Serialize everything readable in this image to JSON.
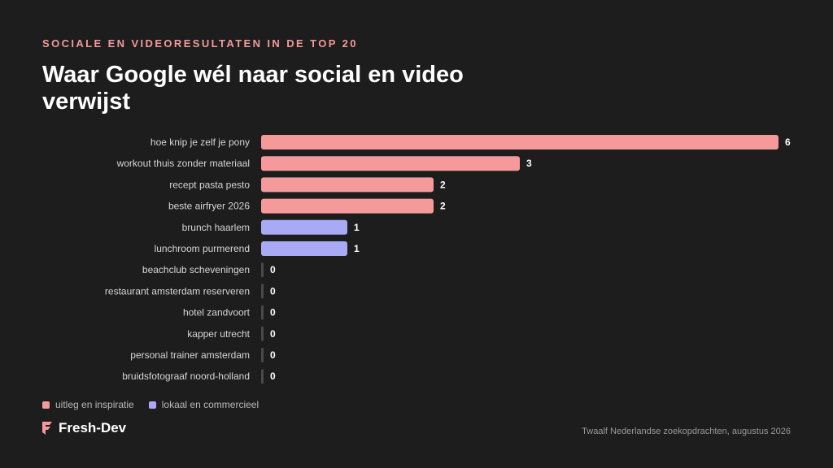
{
  "kicker": "SOCIALE EN VIDEORESULTATEN IN DE TOP 20",
  "title": "Waar Google wél naar social en video verwijst",
  "colors": {
    "background": "#1d1d1d",
    "uitleg": "#f49a9a",
    "lokaal": "#a9aaf5",
    "zero": "#4a4a4a"
  },
  "legend": {
    "items": [
      {
        "label": "uitleg en inspiratie",
        "group": "uitleg"
      },
      {
        "label": "lokaal en commercieel",
        "group": "lokaal"
      }
    ]
  },
  "chart_data": {
    "type": "bar",
    "orientation": "horizontal",
    "categories": [
      "hoe knip je zelf je pony",
      "workout thuis zonder materiaal",
      "recept pasta pesto",
      "beste airfryer 2026",
      "brunch haarlem",
      "lunchroom purmerend",
      "beachclub scheveningen",
      "restaurant amsterdam reserveren",
      "hotel zandvoort",
      "kapper utrecht",
      "personal trainer amsterdam",
      "bruidsfotograaf noord-holland"
    ],
    "values": [
      6,
      3,
      2,
      2,
      1,
      1,
      0,
      0,
      0,
      0,
      0,
      0
    ],
    "groups": [
      "uitleg",
      "uitleg",
      "uitleg",
      "uitleg",
      "lokaal",
      "lokaal",
      "lokaal",
      "lokaal",
      "lokaal",
      "lokaal",
      "lokaal",
      "lokaal"
    ],
    "xlim": [
      0,
      6
    ],
    "grid": false,
    "data_labels": true,
    "legend_position": "bottom-left"
  },
  "logo": {
    "text": "Fresh-Dev",
    "icon": "fresh-dev-logo-icon"
  },
  "footnote": "Twaalf Nederlandse zoekopdrachten, augustus 2026"
}
